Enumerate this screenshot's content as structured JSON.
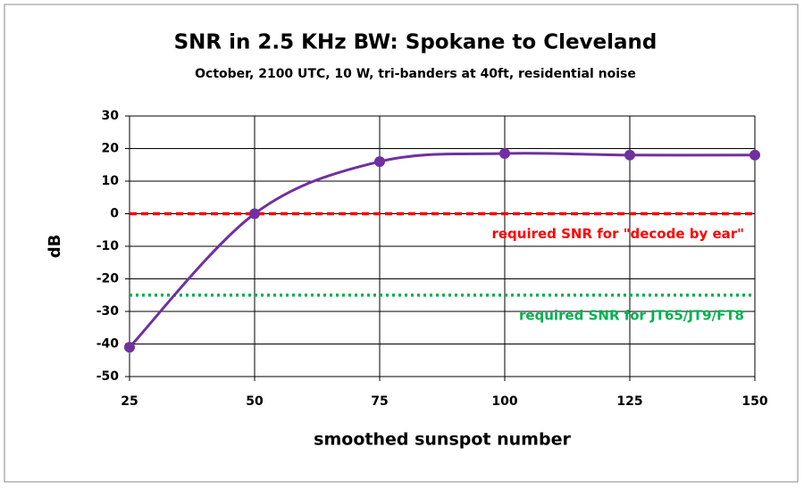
{
  "chart_data": {
    "type": "line",
    "title": "SNR in 2.5 KHz BW: Spokane to Cleveland",
    "subtitle": "October, 2100 UTC,  10 W, tri-banders at 40ft, residential noise",
    "x_label": "smoothed sunspot number",
    "y_label": "dB",
    "x": [
      25,
      50,
      75,
      100,
      125,
      150
    ],
    "series": [
      {
        "color": "#7030a0",
        "values": [
          -41,
          0,
          16,
          18.5,
          18,
          18
        ]
      }
    ],
    "smooth": true,
    "xlim": [
      25,
      150
    ],
    "xticks": [
      25,
      50,
      75,
      100,
      125,
      150
    ],
    "ylim": [
      -50,
      30
    ],
    "yticks": [
      -50,
      -40,
      -30,
      -20,
      -10,
      0,
      10,
      20,
      30
    ],
    "grid": true,
    "reference_lines": [
      {
        "value": 0,
        "label": "required SNR for \"decode by ear\"",
        "color": "#ff0000",
        "style": "dashed"
      },
      {
        "value": -25,
        "label": "required SNR for JT65/JT9/FT8",
        "color": "#00b050",
        "style": "dotted"
      }
    ]
  }
}
